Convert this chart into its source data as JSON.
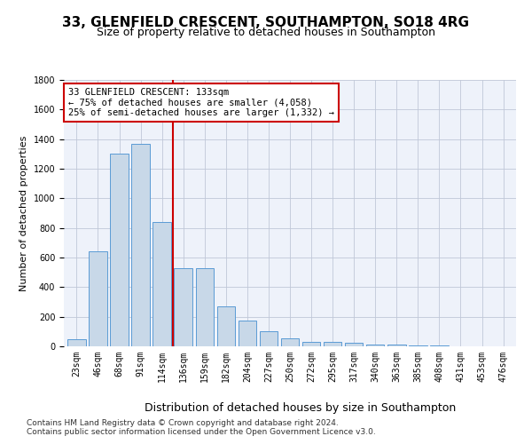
{
  "title_line1": "33, GLENFIELD CRESCENT, SOUTHAMPTON, SO18 4RG",
  "title_line2": "Size of property relative to detached houses in Southampton",
  "xlabel": "Distribution of detached houses by size in Southampton",
  "ylabel": "Number of detached properties",
  "categories": [
    "23sqm",
    "46sqm",
    "68sqm",
    "91sqm",
    "114sqm",
    "136sqm",
    "159sqm",
    "182sqm",
    "204sqm",
    "227sqm",
    "250sqm",
    "272sqm",
    "295sqm",
    "317sqm",
    "340sqm",
    "363sqm",
    "385sqm",
    "408sqm",
    "431sqm",
    "453sqm",
    "476sqm"
  ],
  "values": [
    50,
    640,
    1300,
    1370,
    840,
    530,
    530,
    270,
    175,
    100,
    55,
    30,
    30,
    25,
    15,
    10,
    7,
    5,
    3,
    2,
    2
  ],
  "bar_color": "#c8d8e8",
  "bar_edge_color": "#5b9bd5",
  "vline_color": "#cc0000",
  "vline_x_index": 5,
  "annotation_text": "33 GLENFIELD CRESCENT: 133sqm\n← 75% of detached houses are smaller (4,058)\n25% of semi-detached houses are larger (1,332) →",
  "annotation_box_color": "#ffffff",
  "annotation_box_edge": "#cc0000",
  "ylim": [
    0,
    1800
  ],
  "yticks": [
    0,
    200,
    400,
    600,
    800,
    1000,
    1200,
    1400,
    1600,
    1800
  ],
  "grid_color": "#c0c8d8",
  "bg_color": "#eef2fa",
  "footer_line1": "Contains HM Land Registry data © Crown copyright and database right 2024.",
  "footer_line2": "Contains public sector information licensed under the Open Government Licence v3.0.",
  "title1_fontsize": 11,
  "title2_fontsize": 9,
  "xlabel_fontsize": 9,
  "ylabel_fontsize": 8,
  "tick_fontsize": 7,
  "annotation_fontsize": 7.5,
  "footer_fontsize": 6.5
}
